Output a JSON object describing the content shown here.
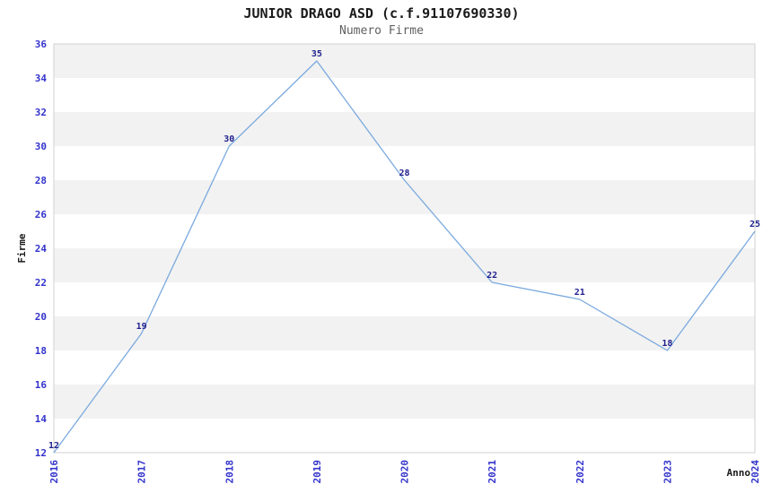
{
  "chart_data": {
    "type": "line",
    "title": "JUNIOR DRAGO ASD (c.f.91107690330)",
    "subtitle": "Numero Firme",
    "xlabel": "Anno",
    "ylabel": "Firme",
    "categories": [
      "2016",
      "2017",
      "2018",
      "2019",
      "2020",
      "2021",
      "2022",
      "2023",
      "2024"
    ],
    "series": [
      {
        "name": "Numero Firme",
        "values": [
          12,
          19,
          30,
          35,
          28,
          22,
          21,
          18,
          25
        ]
      }
    ],
    "ylim": [
      12,
      36
    ],
    "ytick_step": 2,
    "yticks": [
      12,
      14,
      16,
      18,
      20,
      22,
      24,
      26,
      28,
      30,
      32,
      34,
      36
    ],
    "xtick_rotation_deg": 90,
    "grid": "alternating-horizontal-bands",
    "legend_position": "none",
    "data_labels_visible": true
  },
  "colors": {
    "line": "#7aa9de",
    "tick_label": "#3333cc",
    "data_label": "#20208e",
    "band_gray": "#f2f2f2",
    "band_white": "#ffffff",
    "plot_border": "#d2d2d2",
    "title": "#1a1a1a",
    "subtitle": "#606060",
    "axis_label": "#1a1a1a",
    "background": "#ffffff"
  }
}
